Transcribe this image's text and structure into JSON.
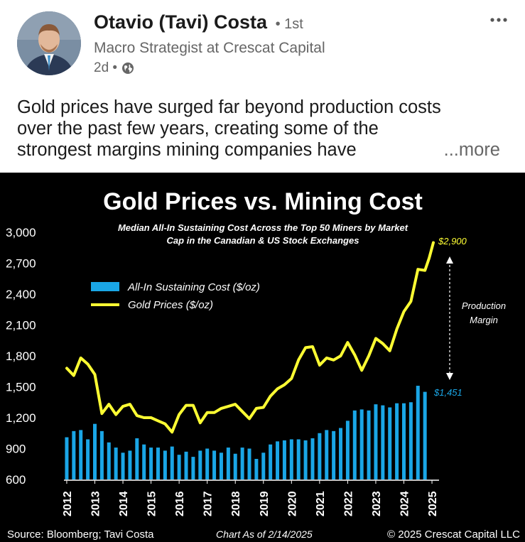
{
  "post": {
    "author": "Otavio (Tavi) Costa",
    "degree": "• 1st",
    "headline": "Macro Strategist at Crescat Capital",
    "time": "2d •",
    "visibility_icon": "globe-icon",
    "menu_icon": "more-options-icon",
    "text_lines": [
      "Gold prices have surged far beyond production costs",
      "over the past few years, creating some of the",
      "strongest margins mining companies have"
    ],
    "see_more": "...more"
  },
  "chart_data": {
    "type": "bar",
    "title": "Gold Prices vs. Mining Cost",
    "subtitle_lines": [
      "Median All-In Sustaining Cost Across the Top 50 Miners by Market",
      "Cap in the Canadian & US Stock Exchanges"
    ],
    "ylim": [
      600,
      3000
    ],
    "y_ticks": [
      "3,000",
      "2,700",
      "2,400",
      "2,100",
      "1,800",
      "1,500",
      "1,200",
      "900",
      "600"
    ],
    "y_tick_values": [
      3000,
      2700,
      2400,
      2100,
      1800,
      1500,
      1200,
      900,
      600
    ],
    "x_tick_labels": [
      "2012",
      "2013",
      "2014",
      "2015",
      "2016",
      "2017",
      "2018",
      "2019",
      "2020",
      "2021",
      "2022",
      "2023",
      "2024",
      "2025"
    ],
    "x_tick_values": [
      2012,
      2013,
      2014,
      2015,
      2016,
      2017,
      2018,
      2019,
      2020,
      2021,
      2022,
      2023,
      2024,
      2025
    ],
    "legend": {
      "placement": "top-left",
      "bar_label": "All-In Sustaining Cost ($/oz)",
      "line_label": "Gold Prices ($/oz)"
    },
    "colors": {
      "bar": "#1aa6e6",
      "line": "#ffff33",
      "background": "#000000",
      "text": "#ffffff"
    },
    "series": [
      {
        "name": "All-In Sustaining Cost ($/oz)",
        "kind": "bar",
        "x": [
          2012.0,
          2012.25,
          2012.5,
          2012.75,
          2013.0,
          2013.25,
          2013.5,
          2013.75,
          2014.0,
          2014.25,
          2014.5,
          2014.75,
          2015.0,
          2015.25,
          2015.5,
          2015.75,
          2016.0,
          2016.25,
          2016.5,
          2016.75,
          2017.0,
          2017.25,
          2017.5,
          2017.75,
          2018.0,
          2018.25,
          2018.5,
          2018.75,
          2019.0,
          2019.25,
          2019.5,
          2019.75,
          2020.0,
          2020.25,
          2020.5,
          2020.75,
          2021.0,
          2021.25,
          2021.5,
          2021.75,
          2022.0,
          2022.25,
          2022.5,
          2022.75,
          2023.0,
          2023.25,
          2023.5,
          2023.75,
          2024.0,
          2024.25,
          2024.5,
          2024.75
        ],
        "values": [
          1010,
          1070,
          1080,
          990,
          1140,
          1070,
          960,
          910,
          860,
          880,
          1000,
          940,
          910,
          910,
          880,
          920,
          840,
          870,
          820,
          880,
          900,
          880,
          860,
          910,
          850,
          910,
          900,
          800,
          860,
          940,
          970,
          980,
          990,
          990,
          980,
          1000,
          1050,
          1080,
          1070,
          1100,
          1170,
          1270,
          1280,
          1270,
          1330,
          1320,
          1300,
          1340,
          1340,
          1350,
          1510,
          1451
        ]
      },
      {
        "name": "Gold Prices ($/oz)",
        "kind": "line",
        "x": [
          2012.0,
          2012.25,
          2012.5,
          2012.75,
          2013.0,
          2013.25,
          2013.5,
          2013.75,
          2014.0,
          2014.25,
          2014.5,
          2014.75,
          2015.0,
          2015.25,
          2015.5,
          2015.75,
          2016.0,
          2016.25,
          2016.5,
          2016.75,
          2017.0,
          2017.25,
          2017.5,
          2017.75,
          2018.0,
          2018.25,
          2018.5,
          2018.75,
          2019.0,
          2019.25,
          2019.5,
          2019.75,
          2020.0,
          2020.25,
          2020.5,
          2020.75,
          2021.0,
          2021.25,
          2021.5,
          2021.75,
          2022.0,
          2022.25,
          2022.5,
          2022.75,
          2023.0,
          2023.25,
          2023.5,
          2023.75,
          2024.0,
          2024.25,
          2024.5,
          2024.75,
          2024.9,
          2025.05
        ],
        "values": [
          1680,
          1610,
          1780,
          1720,
          1620,
          1240,
          1330,
          1230,
          1310,
          1330,
          1220,
          1200,
          1200,
          1170,
          1140,
          1060,
          1230,
          1320,
          1320,
          1150,
          1250,
          1250,
          1290,
          1310,
          1330,
          1260,
          1190,
          1290,
          1300,
          1410,
          1480,
          1520,
          1580,
          1760,
          1880,
          1890,
          1710,
          1780,
          1760,
          1800,
          1930,
          1810,
          1660,
          1800,
          1970,
          1920,
          1850,
          2060,
          2230,
          2330,
          2640,
          2630,
          2750,
          2900
        ]
      }
    ],
    "annotations": {
      "gold_end": "$2,900",
      "cost_end": "$1,451",
      "margin_label_lines": [
        "Production",
        "Margin"
      ]
    },
    "footer": {
      "source": "Source: Bloomberg; Tavi Costa",
      "as_of": "Chart As of 2/14/2025",
      "copyright": "© 2025 Crescat Capital LLC"
    }
  }
}
